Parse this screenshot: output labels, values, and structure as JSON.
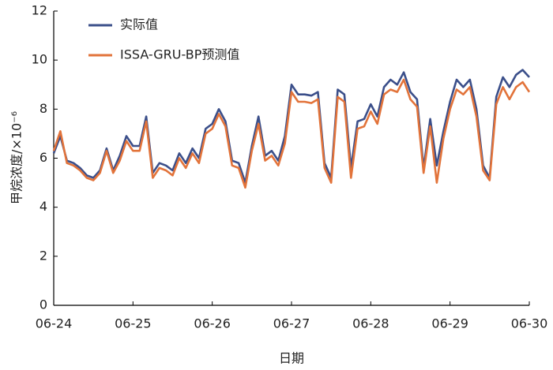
{
  "chart_data": {
    "type": "line",
    "xlabel": "日期",
    "ylabel": "甲烷浓度/×10⁻⁶",
    "x": [
      0,
      2,
      4,
      6,
      8,
      10,
      12,
      14,
      16,
      18,
      20,
      22,
      24,
      26,
      28,
      30,
      32,
      34,
      36,
      38,
      40,
      42,
      44,
      46,
      48,
      50,
      52,
      54,
      56,
      58,
      60,
      62,
      64,
      66,
      68,
      70,
      72,
      74,
      76,
      78,
      80,
      82,
      84,
      86,
      88,
      90,
      92,
      94,
      96,
      98,
      100,
      102,
      104,
      106,
      108,
      110,
      112,
      114,
      116,
      118,
      120,
      122,
      124,
      126,
      128,
      130,
      132,
      134,
      136,
      138,
      140,
      142,
      144
    ],
    "xlim": [
      0,
      144
    ],
    "xticks": [
      {
        "value": 0,
        "label": "06-24"
      },
      {
        "value": 24,
        "label": "06-25"
      },
      {
        "value": 48,
        "label": "06-26"
      },
      {
        "value": 72,
        "label": "06-27"
      },
      {
        "value": 96,
        "label": "06-28"
      },
      {
        "value": 120,
        "label": "06-29"
      },
      {
        "value": 144,
        "label": "06-30"
      }
    ],
    "ylim": [
      0,
      12
    ],
    "yticks": [
      0,
      2,
      4,
      6,
      8,
      10,
      12
    ],
    "legend": "upper left",
    "series": [
      {
        "name": "实际值",
        "color": "#3b4f8a",
        "values": [
          6.2,
          6.9,
          5.9,
          5.8,
          5.6,
          5.3,
          5.2,
          5.5,
          6.4,
          5.5,
          6.1,
          6.9,
          6.5,
          6.5,
          7.7,
          5.4,
          5.8,
          5.7,
          5.5,
          6.2,
          5.8,
          6.4,
          6.0,
          7.2,
          7.4,
          8.0,
          7.5,
          5.9,
          5.8,
          5.0,
          6.5,
          7.7,
          6.1,
          6.3,
          5.9,
          6.9,
          9.0,
          8.6,
          8.6,
          8.55,
          8.7,
          5.8,
          5.2,
          8.8,
          8.6,
          5.6,
          7.5,
          7.6,
          8.2,
          7.7,
          8.9,
          9.2,
          9.0,
          9.5,
          8.7,
          8.4,
          5.6,
          7.6,
          5.7,
          7.1,
          8.3,
          9.2,
          8.9,
          9.2,
          8.0,
          5.7,
          5.2,
          8.5,
          9.3,
          8.9,
          9.4,
          9.6,
          9.3
        ]
      },
      {
        "name": "ISSA-GRU-BP预测值",
        "color": "#e2733a",
        "values": [
          6.3,
          7.1,
          5.8,
          5.7,
          5.5,
          5.2,
          5.1,
          5.4,
          6.3,
          5.4,
          5.9,
          6.7,
          6.3,
          6.3,
          7.5,
          5.2,
          5.6,
          5.5,
          5.3,
          6.0,
          5.6,
          6.2,
          5.8,
          7.0,
          7.2,
          7.8,
          7.3,
          5.7,
          5.6,
          4.8,
          6.3,
          7.4,
          5.9,
          6.1,
          5.7,
          6.6,
          8.7,
          8.3,
          8.3,
          8.25,
          8.4,
          5.6,
          5.0,
          8.5,
          8.3,
          5.2,
          7.2,
          7.3,
          7.9,
          7.4,
          8.6,
          8.8,
          8.7,
          9.2,
          8.4,
          8.1,
          5.4,
          7.3,
          5.0,
          6.8,
          8.0,
          8.8,
          8.6,
          8.9,
          7.7,
          5.5,
          5.1,
          8.2,
          8.9,
          8.4,
          8.9,
          9.1,
          8.7
        ]
      }
    ]
  }
}
